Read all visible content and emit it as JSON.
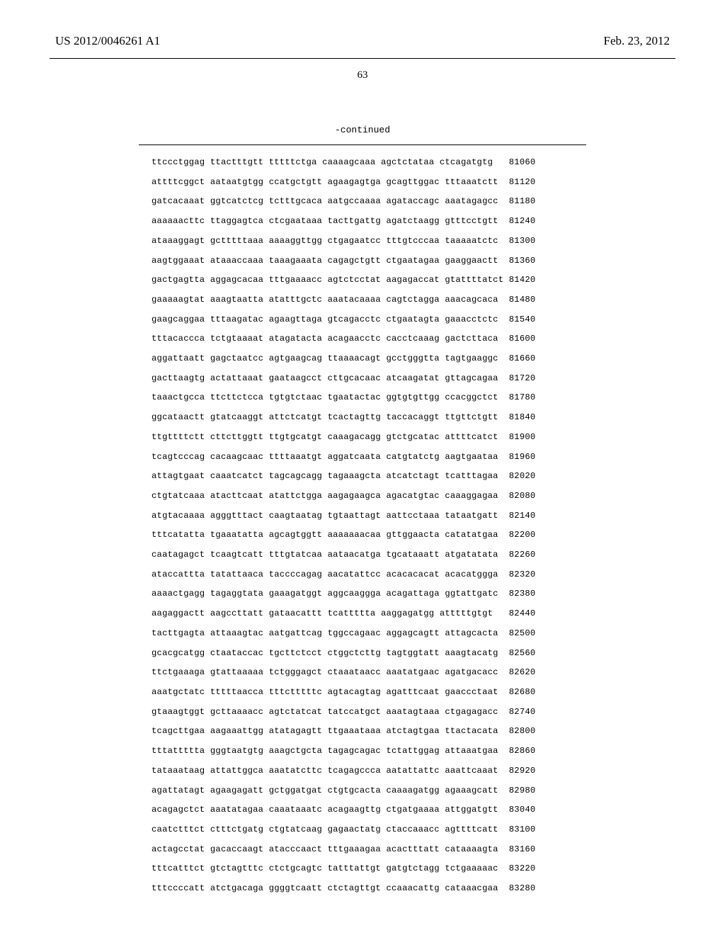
{
  "header": {
    "patent_no": "US 2012/0046261 A1",
    "pub_date": "Feb. 23, 2012",
    "page_no": "63",
    "continued_label": "-continued"
  },
  "sequence": {
    "start": 81060,
    "step": 60,
    "rows": [
      [
        "ttccctggag",
        "ttactttgtt",
        "tttttctga",
        "caaaagcaaa",
        "agctctataa",
        "ctcagatgtg"
      ],
      [
        "attttcggct",
        "aataatgtgg",
        "ccatgctgtt",
        "agaagagtga",
        "gcagttggac",
        "tttaaatctt"
      ],
      [
        "gatcacaaat",
        "ggtcatctcg",
        "tctttgcaca",
        "aatgccaaaa",
        "agataccagc",
        "aaatagagcc"
      ],
      [
        "aaaaaacttc",
        "ttaggagtca",
        "ctcgaataaa",
        "tacttgattg",
        "agatctaagg",
        "gtttcctgtt"
      ],
      [
        "ataaaggagt",
        "gctttttaaa",
        "aaaaggttgg",
        "ctgagaatcc",
        "tttgtcccaa",
        "taaaaatctc"
      ],
      [
        "aagtggaaat",
        "ataaaccaaa",
        "taaagaaata",
        "cagagctgtt",
        "ctgaatagaa",
        "gaaggaactt"
      ],
      [
        "gactgagtta",
        "aggagcacaa",
        "tttgaaaacc",
        "agtctcctat",
        "aagagaccat",
        "gtattttatct"
      ],
      [
        "gaaaaagtat",
        "aaagtaatta",
        "atatttgctc",
        "aaatacaaaa",
        "cagtctagga",
        "aaacagcaca"
      ],
      [
        "gaagcaggaa",
        "tttaagatac",
        "agaagttaga",
        "gtcagacctc",
        "ctgaatagta",
        "gaaacctctc"
      ],
      [
        "tttacaccca",
        "tctgtaaaat",
        "atagatacta",
        "acagaacctc",
        "cacctcaaag",
        "gactcttaca"
      ],
      [
        "aggattaatt",
        "gagctaatcc",
        "agtgaagcag",
        "ttaaaacagt",
        "gcctgggtta",
        "tagtgaaggc"
      ],
      [
        "gacttaagtg",
        "actattaaat",
        "gaataagcct",
        "cttgcacaac",
        "atcaagatat",
        "gttagcagaa"
      ],
      [
        "taaactgcca",
        "ttcttctcca",
        "tgtgtctaac",
        "tgaatactac",
        "ggtgtgttgg",
        "ccacggctct"
      ],
      [
        "ggcataactt",
        "gtatcaaggt",
        "attctcatgt",
        "tcactagttg",
        "taccacaggt",
        "ttgttctgtt"
      ],
      [
        "ttgttttctt",
        "cttcttggtt",
        "ttgtgcatgt",
        "caaagacagg",
        "gtctgcatac",
        "attttcatct"
      ],
      [
        "tcagtcccag",
        "cacaagcaac",
        "ttttaaatgt",
        "aggatcaata",
        "catgtatctg",
        "aagtgaataa"
      ],
      [
        "attagtgaat",
        "caaatcatct",
        "tagcagcagg",
        "tagaaagcta",
        "atcatctagt",
        "tcatttagaa"
      ],
      [
        "ctgtatcaaa",
        "atacttcaat",
        "atattctgga",
        "aagagaagca",
        "agacatgtac",
        "caaaggagaa"
      ],
      [
        "atgtacaaaa",
        "agggtttact",
        "caagtaatag",
        "tgtaattagt",
        "aattcctaaa",
        "tataatgatt"
      ],
      [
        "tttcatatta",
        "tgaaatatta",
        "agcagtggtt",
        "aaaaaaacaa",
        "gttggaacta",
        "catatatgaa"
      ],
      [
        "caatagagct",
        "tcaagtcatt",
        "tttgtatcaa",
        "aataacatga",
        "tgcataaatt",
        "atgatatata"
      ],
      [
        "ataccattta",
        "tatattaaca",
        "taccccagag",
        "aacatattcc",
        "acacacacat",
        "acacatggga"
      ],
      [
        "aaaactgagg",
        "tagaggtata",
        "gaaagatggt",
        "aggcaaggga",
        "acagattaga",
        "ggtattgatc"
      ],
      [
        "aagaggactt",
        "aagccttatt",
        "gataacattt",
        "tcattttta",
        "aaggagatgg",
        "atttttgtgt"
      ],
      [
        "tacttgagta",
        "attaaagtac",
        "aatgattcag",
        "tggccagaac",
        "aggagcagtt",
        "attagcacta"
      ],
      [
        "gcacgcatgg",
        "ctaataccac",
        "tgcttctcct",
        "ctggctcttg",
        "tagtggtatt",
        "aaagtacatg"
      ],
      [
        "ttctgaaaga",
        "gtattaaaaa",
        "tctgggagct",
        "ctaaataacc",
        "aaatatgaac",
        "agatgacacc"
      ],
      [
        "aaatgctatc",
        "tttttaacca",
        "tttctttttc",
        "agtacagtag",
        "agatttcaat",
        "gaaccctaat"
      ],
      [
        "gtaaagtggt",
        "gcttaaaacc",
        "agtctatcat",
        "tatccatgct",
        "aaatagtaaa",
        "ctgagagacc"
      ],
      [
        "tcagcttgaa",
        "aagaaattgg",
        "atatagagtt",
        "ttgaaataaa",
        "atctagtgaa",
        "ttactacata"
      ],
      [
        "tttattttta",
        "gggtaatgtg",
        "aaagctgcta",
        "tagagcagac",
        "tctattggag",
        "attaaatgaa"
      ],
      [
        "tataaataag",
        "attattggca",
        "aaatatcttc",
        "tcagagccca",
        "aatattattc",
        "aaattcaaat"
      ],
      [
        "agattatagt",
        "agaagagatt",
        "gctggatgat",
        "ctgtgcacta",
        "caaaagatgg",
        "agaaagcatt"
      ],
      [
        "acagagctct",
        "aaatatagaa",
        "caaataaatc",
        "acagaagttg",
        "ctgatgaaaa",
        "attggatgtt"
      ],
      [
        "caatctttct",
        "ctttctgatg",
        "ctgtatcaag",
        "gagaactatg",
        "ctaccaaacc",
        "agttttcatt"
      ],
      [
        "actagcctat",
        "gacaccaagt",
        "atacccaact",
        "tttgaaagaa",
        "acactttatt",
        "cataaaagta"
      ],
      [
        "tttcatttct",
        "gtctagtttc",
        "ctctgcagtc",
        "tatttattgt",
        "gatgtctagg",
        "tctgaaaaac"
      ],
      [
        "tttccccatt",
        "atctgacaga",
        "ggggtcaatt",
        "ctctagttgt",
        "ccaaacattg",
        "cataaacgaa"
      ]
    ]
  }
}
